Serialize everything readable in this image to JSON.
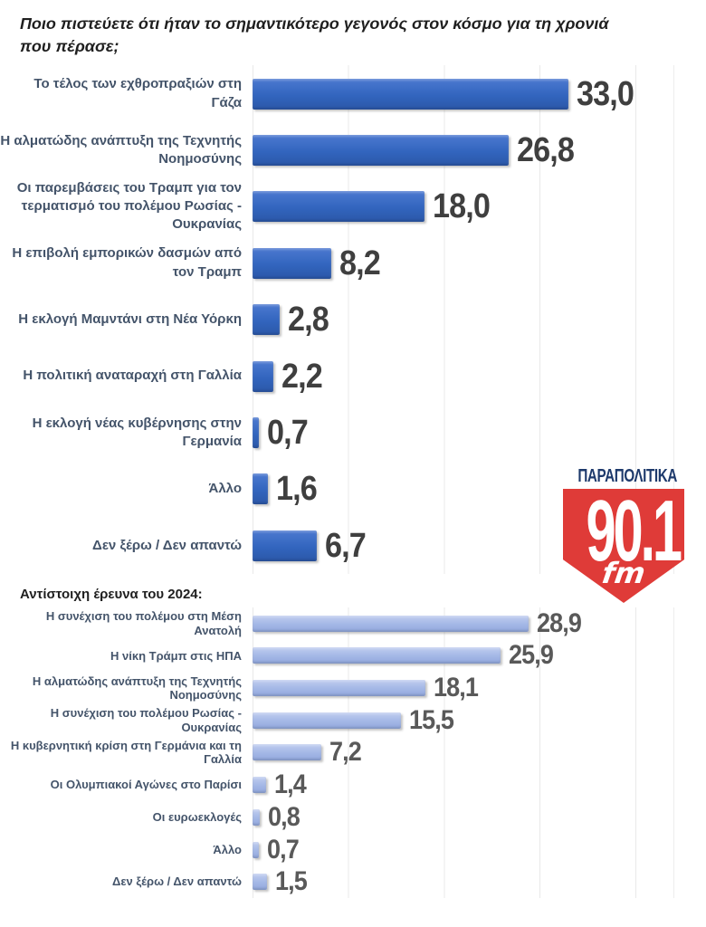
{
  "title": "Ποιο πιστεύετε ότι ήταν το σημαντικότερο γεγονός στον κόσμο για τη χρονιά που πέρασε;",
  "survey_2024_header": "Αντίστοιχη έρευνα του 2024:",
  "logo": {
    "brand": "ΠΑΡΑΠΟΛΙΤΙΚΑ",
    "frequency": "90.1",
    "band": "fm",
    "brand_color": "#1E3A6C",
    "shield_color": "#DF3B38"
  },
  "colors": {
    "category_label": "#44546A",
    "gridline": "#E9E9E9",
    "bar_2025": "#3265BE",
    "bar_2024": "#A3B7E6"
  },
  "chart_data": [
    {
      "type": "bar",
      "orientation": "horizontal",
      "year_label": "current",
      "title": "Ποιο πιστεύετε ότι ήταν το σημαντικότερο γεγονός στον κόσμο για τη χρονιά που πέρασε;",
      "categories": [
        "Το τέλος των εχθροπραξιών στη Γάζα",
        "Η αλματώδης ανάπτυξη της Τεχνητής Νοημοσύνης",
        "Οι παρεμβάσεις του Τραμπ για τον τερματισμό του πολέμου Ρωσίας - Ουκρανίας",
        "Η επιβολή εμπορικών δασμών από τον Τραμπ",
        "Η εκλογή Μαμντάνι στη Νέα Υόρκη",
        "Η πολιτική αναταραχή στη Γαλλία",
        "Η εκλογή νέας κυβέρνησης στην Γερμανία",
        "Άλλο",
        "Δεν ξέρω / Δεν απαντώ"
      ],
      "values": [
        33.0,
        26.8,
        18.0,
        8.2,
        2.8,
        2.2,
        0.7,
        1.6,
        6.7
      ],
      "value_labels": [
        "33,0",
        "26,8",
        "18,0",
        "8,2",
        "2,8",
        "2,2",
        "0,7",
        "1,6",
        "6,7"
      ],
      "xlim": [
        0,
        44
      ],
      "gridline_interval": 10,
      "grid": true,
      "legend": "none",
      "bar_color_top": "#4C79D0",
      "bar_color_mid": "#3265BE",
      "bar_color_bottom": "#2B57A8",
      "value_label_color": "#3F3F3F"
    },
    {
      "type": "bar",
      "orientation": "horizontal",
      "year_label": "2024",
      "title": "Αντίστοιχη έρευνα του 2024:",
      "categories": [
        "Η συνέχιση του πολέμου στη Μέση Ανατολή",
        "Η νίκη Τράμπ στις ΗΠΑ",
        "Η αλματώδης ανάπτυξη της Τεχνητής Νοημοσύνης",
        "Η συνέχιση του πολέμου Ρωσίας - Ουκρανίας",
        "Η κυβερνητική κρίση στη Γερμάνια και τη Γαλλία",
        "Οι Ολυμπιακοί Αγώνες στο Παρίσι",
        "Οι ευρωεκλογές",
        "Άλλο",
        "Δεν ξέρω / Δεν απαντώ"
      ],
      "values": [
        28.9,
        25.9,
        18.1,
        15.5,
        7.2,
        1.4,
        0.8,
        0.7,
        1.5
      ],
      "value_labels": [
        "28,9",
        "25,9",
        "18,1",
        "15,5",
        "7,2",
        "1,4",
        "0,8",
        "0,7",
        "1,5"
      ],
      "xlim": [
        0,
        44
      ],
      "gridline_interval": 10,
      "grid": true,
      "legend": "none",
      "bar_color_top": "#C0CDF0",
      "bar_color_mid": "#A3B7E6",
      "bar_color_bottom": "#92A8DD",
      "value_label_color": "#595959"
    }
  ]
}
